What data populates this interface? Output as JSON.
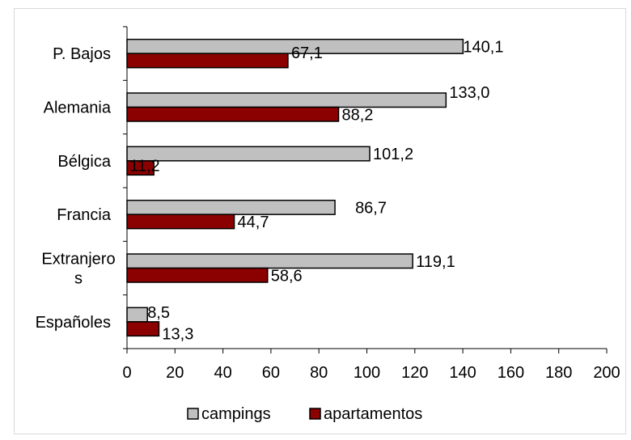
{
  "chart_data": {
    "type": "bar",
    "orientation": "horizontal",
    "categories": [
      "P. Bajos",
      "Alemania",
      "Bélgica",
      "Francia",
      "Extranjeros",
      "Españoles"
    ],
    "category_label_lines": [
      [
        "P. Bajos"
      ],
      [
        "Alemania"
      ],
      [
        "Bélgica"
      ],
      [
        "Francia"
      ],
      [
        "Extranjero",
        "s"
      ],
      [
        "Españoles"
      ]
    ],
    "series": [
      {
        "name": "campings",
        "values": [
          140.1,
          133.0,
          101.2,
          86.7,
          119.1,
          8.5
        ],
        "labels": [
          "140,1",
          "133,0",
          "101,2",
          "86,7",
          "119,1",
          "8,5"
        ],
        "color": "#c0c0c0"
      },
      {
        "name": "apartamentos",
        "values": [
          67.1,
          88.2,
          11.2,
          44.7,
          58.6,
          13.3
        ],
        "labels": [
          "67,1",
          "88,2",
          "11,2",
          "44,7",
          "58,6",
          "13,3"
        ],
        "color": "#8b0000"
      }
    ],
    "xlim": [
      0,
      200
    ],
    "x_ticks": [
      0,
      20,
      40,
      60,
      80,
      100,
      120,
      140,
      160,
      180,
      200
    ],
    "legend_position": "bottom",
    "grid": false
  }
}
